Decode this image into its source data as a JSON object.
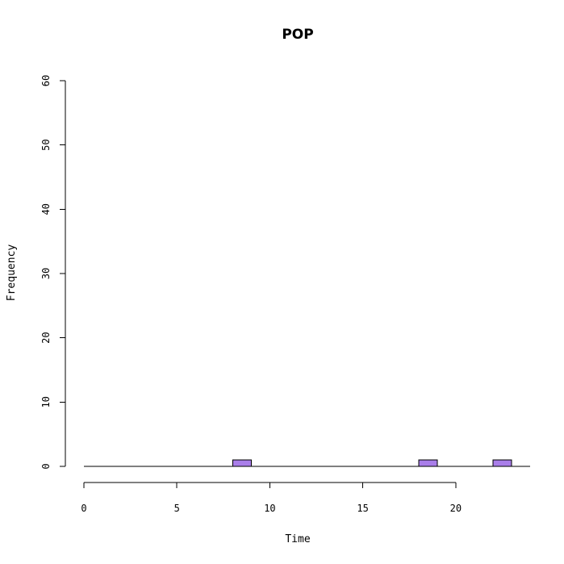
{
  "chart_data": {
    "type": "bar",
    "title": "POP",
    "xlabel": "Time",
    "ylabel": "Frequency",
    "xlim": [
      -1,
      24
    ],
    "ylim": [
      0,
      60
    ],
    "x_axis_range": [
      0,
      20
    ],
    "x_ticks": [
      0,
      5,
      10,
      15,
      20
    ],
    "y_ticks": [
      0,
      10,
      20,
      30,
      40,
      50,
      60
    ],
    "bin_width": 1,
    "bars": [
      {
        "x0": 8,
        "x1": 9,
        "count": 1
      },
      {
        "x0": 18,
        "x1": 19,
        "count": 1
      },
      {
        "x0": 22,
        "x1": 23,
        "count": 1
      }
    ],
    "baseline_range": [
      0,
      24
    ],
    "bar_color": "#a97ee9",
    "grid": false,
    "legend": "none"
  }
}
